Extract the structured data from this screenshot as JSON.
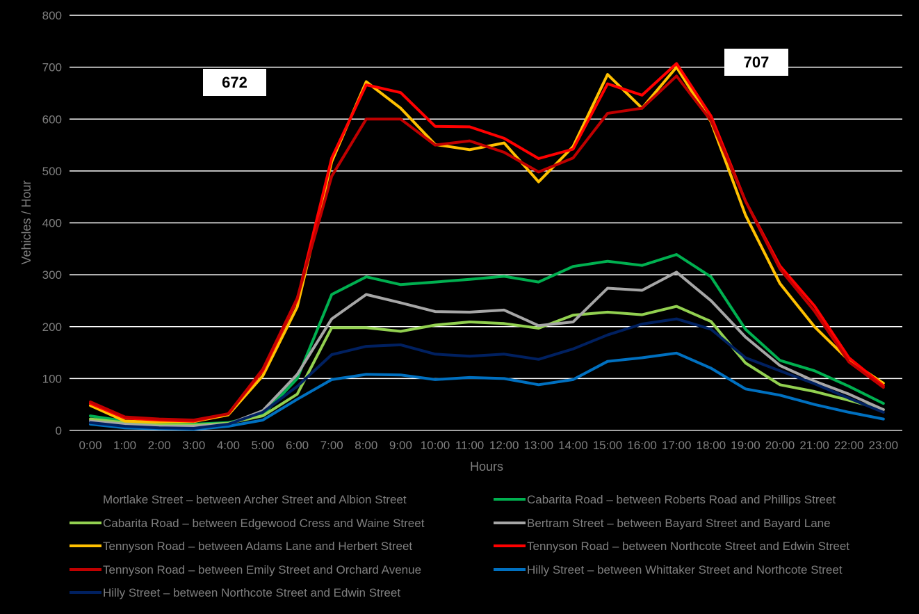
{
  "chart_data": {
    "type": "line",
    "title": "",
    "xlabel": "Hours",
    "ylabel": "Vehicles / Hour",
    "ylim": [
      0,
      800
    ],
    "yticks": [
      "0",
      "100",
      "200",
      "300",
      "400",
      "500",
      "600",
      "700",
      "800"
    ],
    "grid": true,
    "legend_position": "bottom",
    "x": [
      "0:00",
      "1:00",
      "2:00",
      "3:00",
      "4:00",
      "5:00",
      "6:00",
      "7:00",
      "8:00",
      "9:00",
      "10:00",
      "11:00",
      "12:00",
      "13:00",
      "14:00",
      "15:00",
      "16:00",
      "17:00",
      "18:00",
      "19:00",
      "20:00",
      "21:00",
      "22:00",
      "23:00"
    ],
    "series": [
      {
        "name": "Mortlake Street – between Archer Street and Albion Street",
        "color": "#000000",
        "values": [
          null,
          null,
          null,
          null,
          null,
          null,
          null,
          null,
          null,
          null,
          null,
          null,
          null,
          null,
          null,
          null,
          null,
          null,
          null,
          null,
          null,
          null,
          null,
          null
        ]
      },
      {
        "name": "Cabarita Road – between Roberts Road and Phillips Street",
        "color": "#00b050",
        "values": [
          28,
          18,
          12,
          12,
          15,
          30,
          100,
          262,
          296,
          281,
          286,
          291,
          297,
          286,
          316,
          326,
          318,
          339,
          296,
          195,
          135,
          115,
          85,
          52
        ]
      },
      {
        "name": "Cabarita Road – between Edgewood Cress and Waine Street",
        "color": "#92d050",
        "values": [
          22,
          15,
          10,
          10,
          14,
          28,
          70,
          198,
          198,
          191,
          203,
          209,
          206,
          197,
          222,
          228,
          223,
          239,
          210,
          130,
          88,
          75,
          58,
          40
        ]
      },
      {
        "name": "Bertram Street – between Bayard Street and Bayard Lane",
        "color": "#a6a6a6",
        "values": [
          18,
          12,
          8,
          8,
          12,
          38,
          108,
          215,
          262,
          246,
          229,
          228,
          232,
          202,
          209,
          274,
          270,
          305,
          250,
          180,
          125,
          95,
          70,
          40
        ]
      },
      {
        "name": "Tennyson Road – between Adams Lane and Herbert Street",
        "color": "#ffc000",
        "values": [
          48,
          18,
          16,
          17,
          30,
          105,
          238,
          518,
          672,
          621,
          551,
          541,
          554,
          479,
          547,
          686,
          621,
          700,
          595,
          415,
          283,
          200,
          135,
          91
        ]
      },
      {
        "name": "Tennyson Road – between Northcote Street and Edwin Street",
        "color": "#ff0000",
        "values": [
          52,
          24,
          20,
          18,
          32,
          115,
          252,
          525,
          666,
          651,
          586,
          585,
          563,
          524,
          542,
          668,
          646,
          707,
          606,
          442,
          317,
          240,
          140,
          86
        ]
      },
      {
        "name": "Tennyson Road – between Emily Street and Orchard Avenue",
        "color": "#c00000",
        "values": [
          55,
          26,
          22,
          20,
          32,
          118,
          255,
          490,
          600,
          600,
          550,
          558,
          536,
          498,
          525,
          611,
          621,
          683,
          597,
          442,
          311,
          230,
          132,
          83
        ]
      },
      {
        "name": "Hilly Street – between Whittaker Street and Northcote Street",
        "color": "#0070c0",
        "values": [
          12,
          5,
          3,
          2,
          8,
          20,
          60,
          98,
          108,
          107,
          98,
          102,
          100,
          88,
          98,
          133,
          140,
          149,
          120,
          80,
          68,
          50,
          35,
          22
        ]
      },
      {
        "name": "Hilly Street – between Northcote Street and Edwin Street",
        "color": "#002060",
        "values": [
          15,
          8,
          5,
          4,
          12,
          35,
          85,
          146,
          162,
          165,
          147,
          143,
          147,
          137,
          157,
          184,
          205,
          215,
          195,
          140,
          115,
          90,
          62,
          35
        ]
      }
    ],
    "annotations": [
      {
        "text": "672",
        "near": "8:00 peak"
      },
      {
        "text": "707",
        "near": "17:00 peak"
      }
    ]
  }
}
